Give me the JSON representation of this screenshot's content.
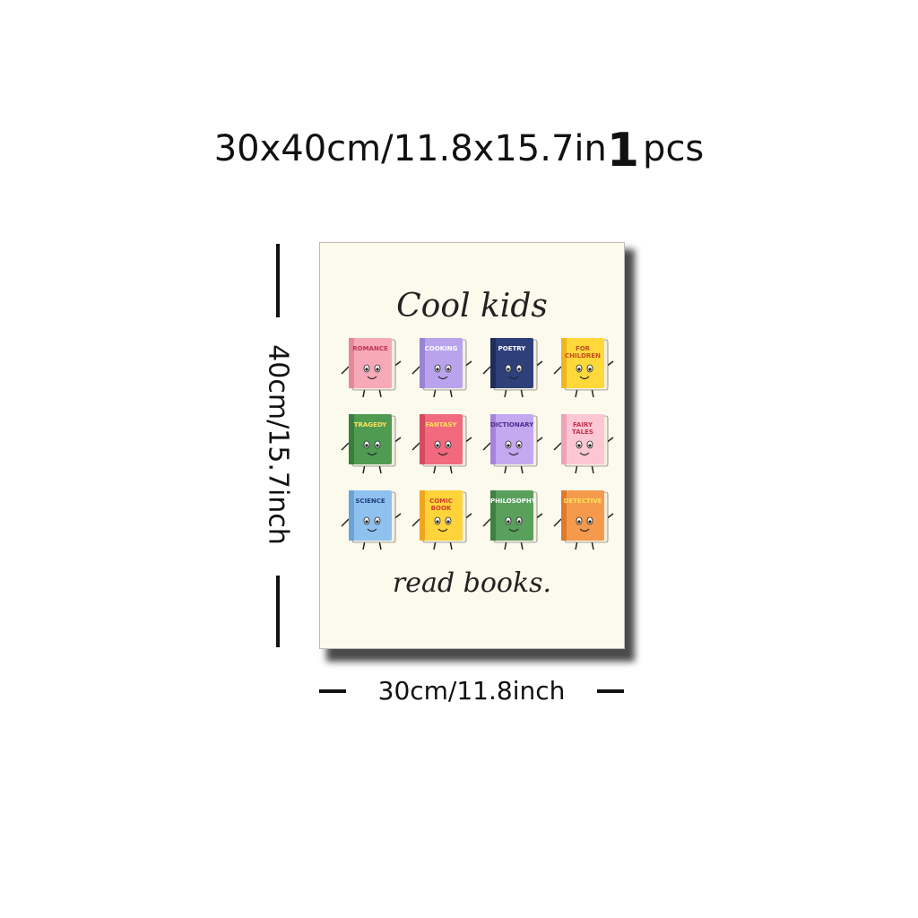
{
  "headline": {
    "size": "30x40cm/11.8x15.7in",
    "qty": "1",
    "unit": "pcs"
  },
  "poster": {
    "title_top": "Cool kids",
    "title_bottom": "read books.",
    "books": [
      {
        "label": "ROMANCE",
        "color": "#f7a9b8",
        "spine": "#e9879a",
        "text_color": "#c2334f"
      },
      {
        "label": "COOKING",
        "color": "#b9a3ec",
        "spine": "#9a82d6",
        "text_color": "#ffffff"
      },
      {
        "label": "POETRY",
        "color": "#2e3f7a",
        "spine": "#1f2c5c",
        "text_color": "#ffffff"
      },
      {
        "label": "FOR CHILDREN",
        "color": "#ffd83a",
        "spine": "#f2b51f",
        "text_color": "#c24a1d"
      },
      {
        "label": "TRAGEDY",
        "color": "#4f9b52",
        "spine": "#3a7d3d",
        "text_color": "#ffe25a"
      },
      {
        "label": "FANTASY",
        "color": "#f26a7d",
        "spine": "#d44b60",
        "text_color": "#ffe25a"
      },
      {
        "label": "DICTIONARY",
        "color": "#c4a8f0",
        "spine": "#a484da",
        "text_color": "#4b2c8f"
      },
      {
        "label": "FAIRY TALES",
        "color": "#fcc6d3",
        "spine": "#f0a2b6",
        "text_color": "#c2334f"
      },
      {
        "label": "SCIENCE",
        "color": "#8fc1ef",
        "spine": "#6aa3d9",
        "text_color": "#1f3f7a"
      },
      {
        "label": "COMIC BOOK",
        "color": "#ffd43b",
        "spine": "#f2a61f",
        "text_color": "#d33b2c"
      },
      {
        "label": "PHILOSOPHY",
        "color": "#5aa05d",
        "spine": "#3f8142",
        "text_color": "#ffffff"
      },
      {
        "label": "DETECTIVE",
        "color": "#f59a4c",
        "spine": "#e07a2a",
        "text_color": "#ffe25a"
      }
    ]
  },
  "dimensions": {
    "height": "40cm/15.7inch",
    "width": "30cm/11.8inch"
  }
}
